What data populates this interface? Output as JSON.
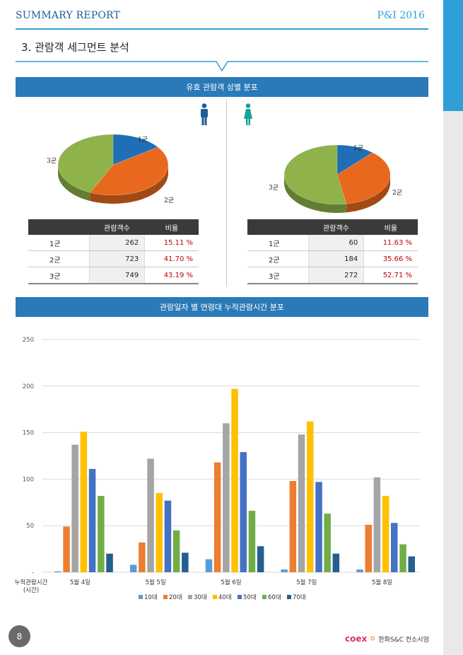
{
  "header": {
    "left": "SUMMARY REPORT",
    "right": "P&I 2016"
  },
  "section_title": "3. 관람객 세그먼트 분석",
  "band1": "유효 관람객 성별 분포",
  "band2": "관람일자 별 연령대 누적관람시간 분포",
  "colors": {
    "band": "#2a7ab8",
    "accent": "#2f9fd8",
    "male": "#1f5e98",
    "female": "#1aa39a",
    "group1": "#1f6fb6",
    "group2": "#e8691e",
    "group3": "#8fb24a"
  },
  "male": {
    "icon": "male-icon",
    "table": {
      "headers": [
        "관람객수",
        "비율"
      ],
      "rows": [
        {
          "group": "1군",
          "count": "262",
          "ratio": "15.11 %"
        },
        {
          "group": "2군",
          "count": "723",
          "ratio": "41.70 %"
        },
        {
          "group": "3군",
          "count": "749",
          "ratio": "43.19 %"
        }
      ]
    },
    "pie_labels": [
      "1군",
      "2군",
      "3군"
    ]
  },
  "female": {
    "icon": "female-icon",
    "table": {
      "headers": [
        "관람객수",
        "비율"
      ],
      "rows": [
        {
          "group": "1군",
          "count": "60",
          "ratio": "11.63 %"
        },
        {
          "group": "2군",
          "count": "184",
          "ratio": "35.66 %"
        },
        {
          "group": "3군",
          "count": "272",
          "ratio": "52.71 %"
        }
      ]
    },
    "pie_labels": [
      "1군",
      "2군",
      "3군"
    ]
  },
  "chart_data": [
    {
      "type": "pie",
      "categories": [
        "1군",
        "2군",
        "3군"
      ],
      "values": [
        15.11,
        41.7,
        43.19
      ]
    },
    {
      "type": "pie",
      "categories": [
        "1군",
        "2군",
        "3군"
      ],
      "values": [
        11.63,
        35.66,
        52.71
      ]
    },
    {
      "type": "bar",
      "categories": [
        "5월 4일",
        "5월 5일",
        "5월 6일",
        "5월 7일",
        "5월 8일"
      ],
      "xlabel": "누적관람시간 (시간)",
      "ylim": [
        0,
        250
      ],
      "yticks": [
        "-",
        "50",
        "100",
        "150",
        "200",
        "250"
      ],
      "grid": true,
      "legend": "bottom",
      "series": [
        {
          "name": "10대",
          "color": "#5b9bd5",
          "values": [
            1,
            8,
            14,
            3,
            3
          ]
        },
        {
          "name": "20대",
          "color": "#ed7d31",
          "values": [
            49,
            32,
            118,
            98,
            51
          ]
        },
        {
          "name": "30대",
          "color": "#a5a5a5",
          "values": [
            137,
            122,
            160,
            148,
            102
          ]
        },
        {
          "name": "40대",
          "color": "#ffc000",
          "values": [
            151,
            85,
            197,
            162,
            82
          ]
        },
        {
          "name": "50대",
          "color": "#4472c4",
          "values": [
            111,
            77,
            129,
            97,
            53
          ]
        },
        {
          "name": "60대",
          "color": "#70ad47",
          "values": [
            82,
            45,
            66,
            63,
            30
          ]
        },
        {
          "name": "70대",
          "color": "#255e91",
          "values": [
            20,
            21,
            28,
            20,
            17
          ]
        }
      ]
    }
  ],
  "footer": {
    "page": "8",
    "logo_brand": "coex",
    "logo_text": "한화S&C 컨소시엄"
  }
}
